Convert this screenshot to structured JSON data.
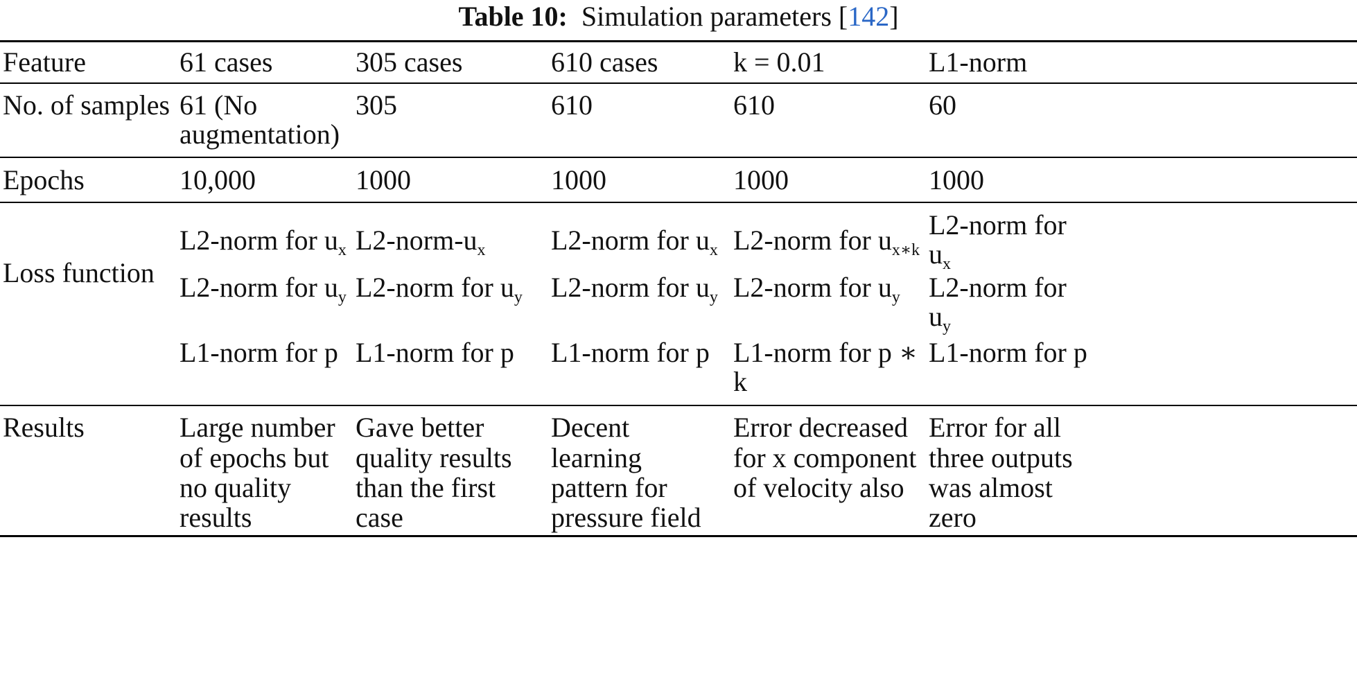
{
  "caption": {
    "label": "Table 10:",
    "text": "Simulation parameters [",
    "ref": "142",
    "close": "]"
  },
  "table": {
    "header": {
      "feature": "Feature",
      "c1": "61 cases",
      "c2": "305 cases",
      "c3": "610 cases",
      "c4": "k = 0.01",
      "c5": "L1-norm"
    },
    "samples": {
      "label": "No. of samples",
      "c1_l1": "61 (No",
      "c1_l2": "augmentation)",
      "c2": "305",
      "c3": "610",
      "c4": "610",
      "c5": "60"
    },
    "epochs": {
      "label": "Epochs",
      "c1": "10,000",
      "c2": "1000",
      "c3": "1000",
      "c4": "1000",
      "c5": "1000"
    },
    "loss": {
      "label": "Loss function",
      "l2_for_u": "L2-norm for u",
      "l2_dash_u": "L2-norm-u",
      "l2_for": "L2-norm for",
      "u": "u",
      "sub_x": "x",
      "sub_y": "y",
      "sub_xk": "x∗k",
      "l1_for_p": "L1-norm for p",
      "l1_for_p_star": "L1-norm for p ∗",
      "k": "k"
    },
    "results": {
      "label": "Results",
      "c1": [
        "Large number",
        "of epochs but",
        "no quality",
        "results"
      ],
      "c2": [
        "Gave better",
        "quality results",
        "than the first",
        "case"
      ],
      "c3": [
        "Decent",
        "learning",
        "pattern for",
        "pressure field"
      ],
      "c4": [
        "Error decreased",
        "for x component",
        "of velocity also"
      ],
      "c5": [
        "Error for all",
        "three outputs",
        "was almost",
        "zero"
      ]
    }
  }
}
